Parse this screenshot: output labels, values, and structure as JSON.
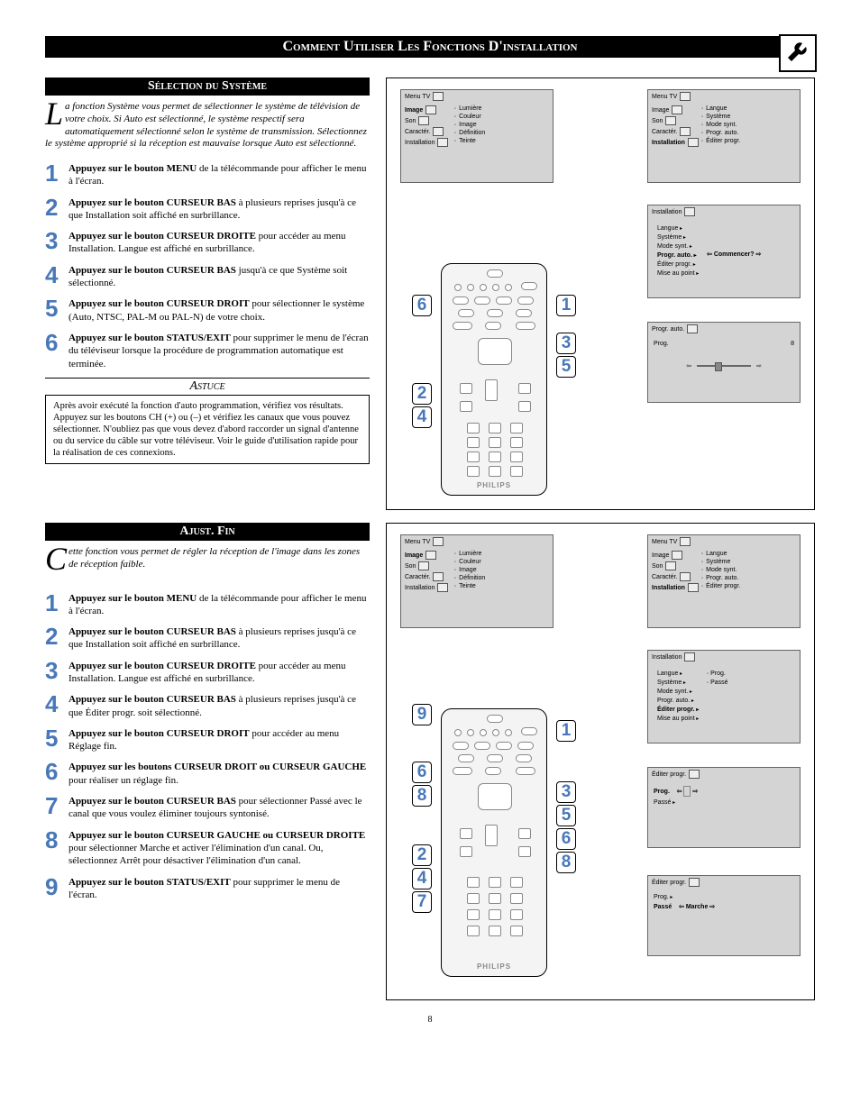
{
  "page": {
    "number": "8",
    "main_title": "Comment Utiliser Les Fonctions D'installation"
  },
  "colors": {
    "step_number": "#4878b8",
    "header_bg": "#000000",
    "header_fg": "#ffffff",
    "panel_bg": "#d4d4d4"
  },
  "section1": {
    "header": "Sélection du Système",
    "intro_dropcap": "L",
    "intro_rest": "a fonction Système vous permet de sélectionner le système de télévision de votre choix. Si Auto est sélectionné, le système respectif sera automatiquement sélectionné selon le système de transmission. Sélectionnez le système approprié si la réception est mauvaise lorsque Auto est sélectionné.",
    "steps": [
      {
        "n": "1",
        "bold": "Appuyez sur le bouton MENU",
        "rest": " de la télécommande pour afficher le menu à l'écran."
      },
      {
        "n": "2",
        "bold": "Appuyez sur le bouton CURSEUR BAS",
        "rest": " à plusieurs reprises jusqu'à ce que Installation soit affiché en surbrillance."
      },
      {
        "n": "3",
        "bold": "Appuyez sur le bouton CURSEUR DROITE",
        "rest": " pour accéder au menu Installation. Langue est affiché en surbrillance."
      },
      {
        "n": "4",
        "bold": "Appuyez sur le bouton CURSEUR BAS",
        "rest": " jusqu'à ce que Système soit sélectionné."
      },
      {
        "n": "5",
        "bold": "Appuyez sur le bouton CURSEUR DROIT",
        "rest": " pour sélectionner le système (Auto, NTSC, PAL-M ou PAL-N) de votre choix."
      },
      {
        "n": "6",
        "bold": "Appuyez sur le bouton STATUS/EXIT",
        "rest": " pour supprimer le menu de l'écran du téléviseur lorsque la procédure de programmation automatique est terminée."
      }
    ],
    "tip_header": "Astuce",
    "tip_body": "Après avoir exécuté la fonction d'auto programmation, vérifiez vos résultats. Appuyez sur les boutons CH (+) ou (–) et vérifiez les canaux que vous pouvez sélectionner. N'oubliez pas que vous devez d'abord raccorder un signal d'antenne ou du service du câble sur votre téléviseur. Voir le guide d'utilisation rapide pour la réalisation de ces connexions."
  },
  "section2": {
    "header": "Ajust. Fin",
    "intro_dropcap": "C",
    "intro_rest": "ette fonction vous permet de régler la réception de l'image dans les zones de réception faible.",
    "steps": [
      {
        "n": "1",
        "bold": "Appuyez sur le bouton MENU",
        "rest": " de la télécommande pour afficher le menu à l'écran."
      },
      {
        "n": "2",
        "bold": "Appuyez sur le bouton CURSEUR BAS",
        "rest": " à plusieurs reprises jusqu'à ce que Installation soit affiché en surbrillance."
      },
      {
        "n": "3",
        "bold": "Appuyez sur le bouton CURSEUR DROITE",
        "rest": " pour accéder au menu Installation. Langue est affiché en surbrillance."
      },
      {
        "n": "4",
        "bold": "Appuyez sur le bouton CURSEUR BAS",
        "rest": " à plusieurs reprises jusqu'à ce que Éditer progr. soit sélectionné."
      },
      {
        "n": "5",
        "bold": "Appuyez sur le bouton CURSEUR DROIT",
        "rest": " pour accéder au menu Réglage fin."
      },
      {
        "n": "6",
        "bold": "Appuyez sur les boutons CURSEUR DROIT ou CURSEUR GAUCHE",
        "rest": " pour réaliser un réglage fin."
      },
      {
        "n": "7",
        "bold": "Appuyez sur le bouton CURSEUR BAS",
        "rest": " pour sélectionner Passé avec le canal que vous voulez éliminer toujours syntonisé."
      },
      {
        "n": "8",
        "bold": "Appuyez sur le bouton CURSEUR GAUCHE ou CURSEUR DROITE",
        "rest": " pour sélectionner Marche et activer l'élimination d'un canal. Ou, sélectionnez Arrêt pour désactiver l'élimination d'un canal."
      },
      {
        "n": "9",
        "bold": "Appuyez sur le bouton STATUS/EXIT",
        "rest": " pour supprimer le menu de l'écran."
      }
    ]
  },
  "diagram1": {
    "menu_tv_label": "Menu TV",
    "left_panel": {
      "items": [
        "Image",
        "Son",
        "Caractér.",
        "Installation"
      ],
      "bold_index": 0,
      "right": [
        "Lumière",
        "Couleur",
        "Image",
        "Définition",
        "Teinte"
      ]
    },
    "right_panel": {
      "items": [
        "Image",
        "Son",
        "Caractér.",
        "Installation"
      ],
      "bold_index": 3,
      "right": [
        "Langue",
        "Système",
        "Mode synt.",
        "Progr. auto.",
        "Éditer progr."
      ]
    },
    "install_panel": {
      "title": "Installation",
      "items": [
        "Langue",
        "Système",
        "Mode synt.",
        "Progr. auto.",
        "Éditer progr.",
        "Mise au point"
      ],
      "bold_index": 3,
      "action": "Commencer?"
    },
    "progr_panel": {
      "title": "Progr. auto.",
      "label": "Prog.",
      "value": "8"
    },
    "callouts_left": [
      "6",
      "2",
      "4"
    ],
    "callouts_right": [
      "1",
      "3",
      "5"
    ],
    "remote_brand": "PHILIPS"
  },
  "diagram2": {
    "menu_tv_label": "Menu TV",
    "left_panel": {
      "items": [
        "Image",
        "Son",
        "Caractér.",
        "Installation"
      ],
      "bold_index": 0,
      "right": [
        "Lumière",
        "Couleur",
        "Image",
        "Définition",
        "Teinte"
      ]
    },
    "right_panel": {
      "items": [
        "Image",
        "Son",
        "Caractér.",
        "Installation"
      ],
      "bold_index": 3,
      "right": [
        "Langue",
        "Système",
        "Mode synt.",
        "Progr. auto.",
        "Éditer progr."
      ]
    },
    "install_panel": {
      "title": "Installation",
      "items": [
        "Langue",
        "Système",
        "Mode synt.",
        "Progr. auto.",
        "Éditer progr.",
        "Mise au point"
      ],
      "bold_index": 4,
      "right": [
        "Prog.",
        "Passé"
      ]
    },
    "edit_panel1": {
      "title": "Éditer progr.",
      "items": [
        "Prog.",
        "Passé"
      ],
      "bold_index": 0
    },
    "edit_panel2": {
      "title": "Éditer progr.",
      "items": [
        "Prog.",
        "Passé"
      ],
      "bold_index": 1,
      "value": "Marche"
    },
    "callouts_left_a": [
      "9",
      "6",
      "8"
    ],
    "callouts_left_b": [
      "2",
      "4",
      "7"
    ],
    "callouts_right": [
      "1",
      "3",
      "5",
      "6",
      "8"
    ],
    "remote_brand": "PHILIPS"
  }
}
